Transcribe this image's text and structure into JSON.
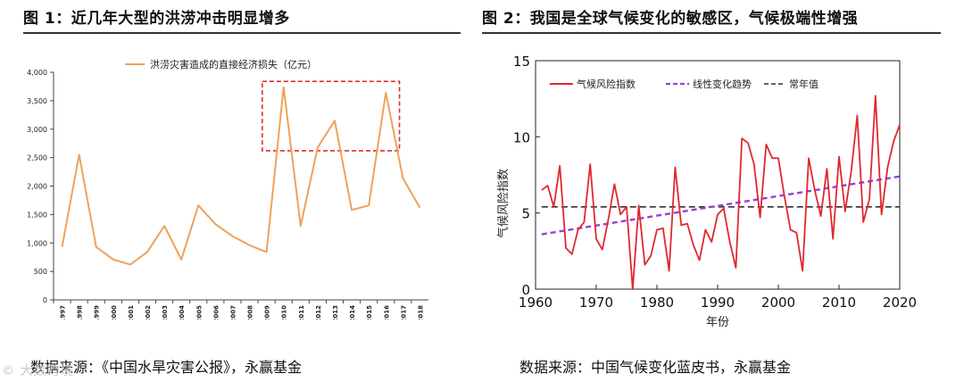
{
  "figure1": {
    "title": "图 1：近几年大型的洪涝冲击明显增多",
    "source": "数据来源：《中国水旱灾害公报》，永赢基金",
    "chart_data": {
      "type": "line",
      "legend": "洪涝灾害造成的直接经济损失（亿元）",
      "categories": [
        "1997",
        "1998",
        "1999",
        "2000",
        "2001",
        "2002",
        "2003",
        "2004",
        "2005",
        "2006",
        "2007",
        "2008",
        "2009",
        "2010",
        "2011",
        "2012",
        "2013",
        "2014",
        "2015",
        "2016",
        "2017",
        "2018"
      ],
      "values": [
        930,
        2550,
        930,
        710,
        620,
        840,
        1300,
        710,
        1660,
        1330,
        1120,
        960,
        840,
        3740,
        1300,
        2680,
        3150,
        1580,
        1660,
        3640,
        2140,
        1620
      ],
      "ylim": [
        0,
        4000
      ],
      "yticks": [
        0,
        500,
        1000,
        1500,
        2000,
        2500,
        3000,
        3500,
        4000
      ],
      "ytick_labels": [
        "0",
        "500",
        "1,000",
        "1,500",
        "2,000",
        "2,500",
        "3,000",
        "3,500",
        "4,000"
      ],
      "highlight_range": [
        "2010",
        "2016"
      ],
      "line_color": "#f0a15a",
      "box_color": "#e03030"
    }
  },
  "figure2": {
    "title": "图 2：我国是全球气候变化的敏感区，气候极端性增强",
    "source": "数据来源：中国气候变化蓝皮书，永赢基金",
    "chart_data": {
      "type": "line",
      "xlabel": "年份",
      "ylabel": "气候风险指数",
      "x": [
        1961,
        1962,
        1963,
        1964,
        1965,
        1966,
        1967,
        1968,
        1969,
        1970,
        1971,
        1972,
        1973,
        1974,
        1975,
        1976,
        1977,
        1978,
        1979,
        1980,
        1981,
        1982,
        1983,
        1984,
        1985,
        1986,
        1987,
        1988,
        1989,
        1990,
        1991,
        1992,
        1993,
        1994,
        1995,
        1996,
        1997,
        1998,
        1999,
        2000,
        2001,
        2002,
        2003,
        2004,
        2005,
        2006,
        2007,
        2008,
        2009,
        2010,
        2011,
        2012,
        2013,
        2014,
        2015,
        2016,
        2017,
        2018,
        2019,
        2020
      ],
      "series": [
        {
          "name": "气候风险指数",
          "color": "#e0282e",
          "values": [
            6.5,
            6.8,
            5.4,
            8.1,
            2.7,
            2.3,
            3.9,
            4.4,
            8.2,
            3.3,
            2.6,
            4.6,
            6.9,
            4.9,
            5.4,
            0.0,
            5.5,
            1.6,
            2.2,
            3.9,
            4.0,
            1.2,
            8.0,
            4.2,
            4.3,
            2.9,
            1.9,
            3.9,
            3.1,
            4.9,
            5.3,
            3.1,
            1.4,
            9.9,
            9.6,
            8.2,
            4.7,
            9.5,
            8.6,
            8.6,
            6.1,
            3.9,
            3.7,
            1.2,
            8.6,
            6.5,
            4.8,
            7.9,
            3.3,
            8.7,
            5.1,
            7.7,
            11.4,
            4.4,
            5.9,
            12.7,
            4.9,
            8.0,
            9.7,
            10.8
          ]
        },
        {
          "name": "线性变化趋势",
          "color": "#9b3fd6",
          "from": [
            1961,
            3.6
          ],
          "to": [
            2020,
            7.4
          ]
        },
        {
          "name": "常年值",
          "color": "#333333",
          "value": 5.4
        }
      ],
      "xlim": [
        1960,
        2020
      ],
      "ylim": [
        0,
        15
      ],
      "xticks": [
        1960,
        1970,
        1980,
        1990,
        2000,
        2010,
        2020
      ],
      "yticks": [
        0,
        5,
        10,
        15
      ]
    }
  },
  "watermark": "© 大数跨境"
}
